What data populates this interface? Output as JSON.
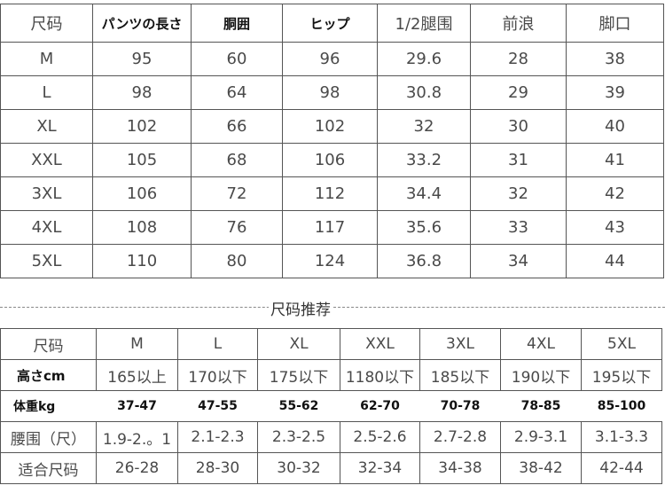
{
  "size_table": {
    "headers": [
      "尺码",
      "パンツの長さ",
      "胴囲",
      "ヒップ",
      "1/2腿围",
      "前浪",
      "脚口"
    ],
    "rows": [
      [
        "M",
        "95",
        "60",
        "96",
        "29.6",
        "28",
        "38"
      ],
      [
        "L",
        "98",
        "64",
        "98",
        "30.8",
        "29",
        "39"
      ],
      [
        "XL",
        "102",
        "66",
        "102",
        "32",
        "30",
        "40"
      ],
      [
        "XXL",
        "105",
        "68",
        "106",
        "33.2",
        "31",
        "41"
      ],
      [
        "3XL",
        "106",
        "72",
        "112",
        "34.4",
        "32",
        "42"
      ],
      [
        "4XL",
        "108",
        "76",
        "117",
        "35.6",
        "33",
        "43"
      ],
      [
        "5XL",
        "110",
        "80",
        "124",
        "36.8",
        "34",
        "44"
      ]
    ]
  },
  "recommend_title": "尺码推荐",
  "recommend_table": {
    "headers": [
      "尺码",
      "M",
      "L",
      "XL",
      "XXL",
      "3XL",
      "4XL",
      "5XL"
    ],
    "height": [
      "高さcm",
      "165以上",
      "170以下",
      "175以下",
      "1180以下",
      "185以下",
      "190以下",
      "195以下"
    ],
    "weight": [
      "体重kg",
      "37-47",
      "47-55",
      "55-62",
      "62-70",
      "70-78",
      "78-85",
      "85-100"
    ],
    "waist": [
      "腰围（尺）",
      "1.9-2.。1",
      "2.1-2.3",
      "2.3-2.5",
      "2.5-2.6",
      "2.7-2.8",
      "2.9-3.1",
      "3.1-3.3"
    ],
    "fit": [
      "适合尺码",
      "26-28",
      "28-30",
      "30-32",
      "32-34",
      "34-38",
      "38-42",
      "42-44"
    ]
  }
}
